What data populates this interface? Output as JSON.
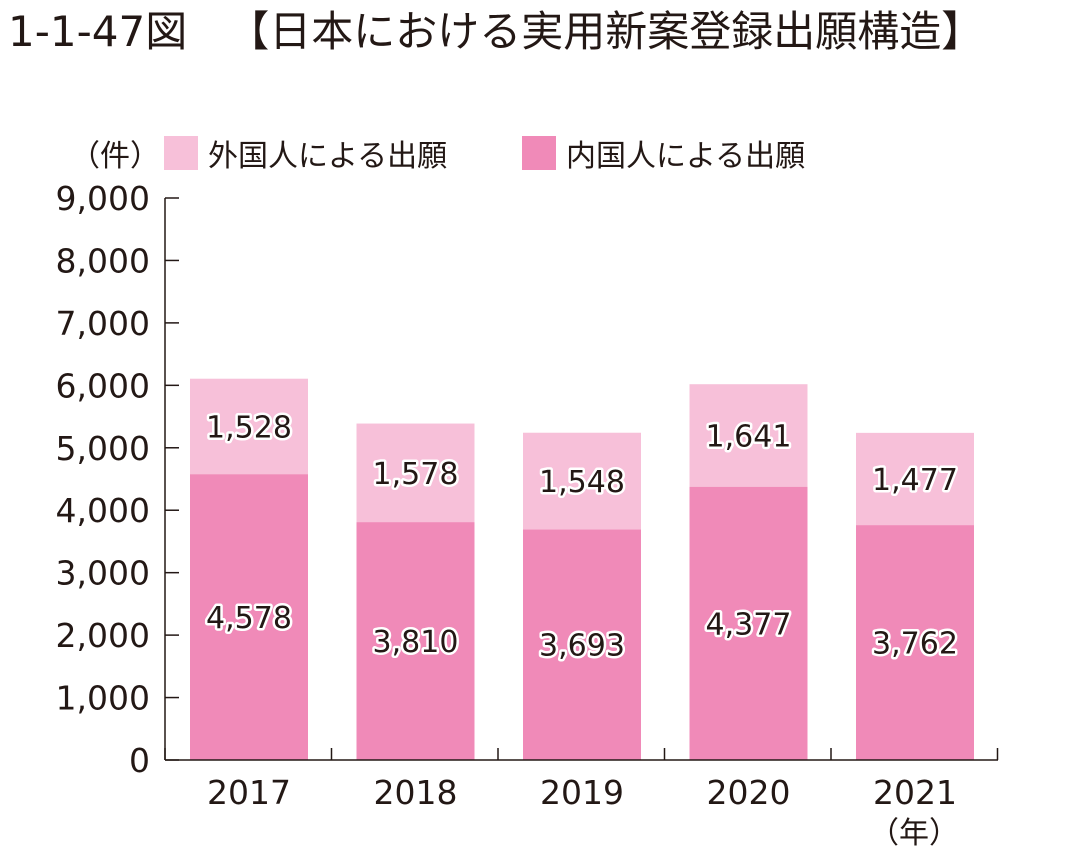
{
  "figure": {
    "number": "1-1-47図",
    "title": "【日本における実用新案登録出願構造】"
  },
  "chart_data": {
    "type": "bar",
    "stacked": true,
    "categories": [
      "2017",
      "2018",
      "2019",
      "2020",
      "2021"
    ],
    "series": [
      {
        "name": "内国人による出願",
        "values": [
          4578,
          3810,
          3693,
          4377,
          3762
        ],
        "color": "#f08ab8"
      },
      {
        "name": "外国人による出願",
        "values": [
          1528,
          1578,
          1548,
          1641,
          1477
        ],
        "color": "#f7c0d9"
      }
    ],
    "value_labels": {
      "内国人による出願": [
        "4,578",
        "3,810",
        "3,693",
        "4,377",
        "3,762"
      ],
      "外国人による出願": [
        "1,528",
        "1,578",
        "1,548",
        "1,641",
        "1,477"
      ]
    },
    "ylabel": "（件）",
    "xlabel": "（年）",
    "ylim": [
      0,
      9000
    ],
    "yticks": [
      0,
      1000,
      2000,
      3000,
      4000,
      5000,
      6000,
      7000,
      8000,
      9000
    ],
    "ytick_labels": [
      "0",
      "1,000",
      "2,000",
      "3,000",
      "4,000",
      "5,000",
      "6,000",
      "7,000",
      "8,000",
      "9,000"
    ],
    "legend": {
      "placement": "top-left",
      "order": [
        "外国人による出願",
        "内国人による出願"
      ]
    },
    "grid": false
  }
}
